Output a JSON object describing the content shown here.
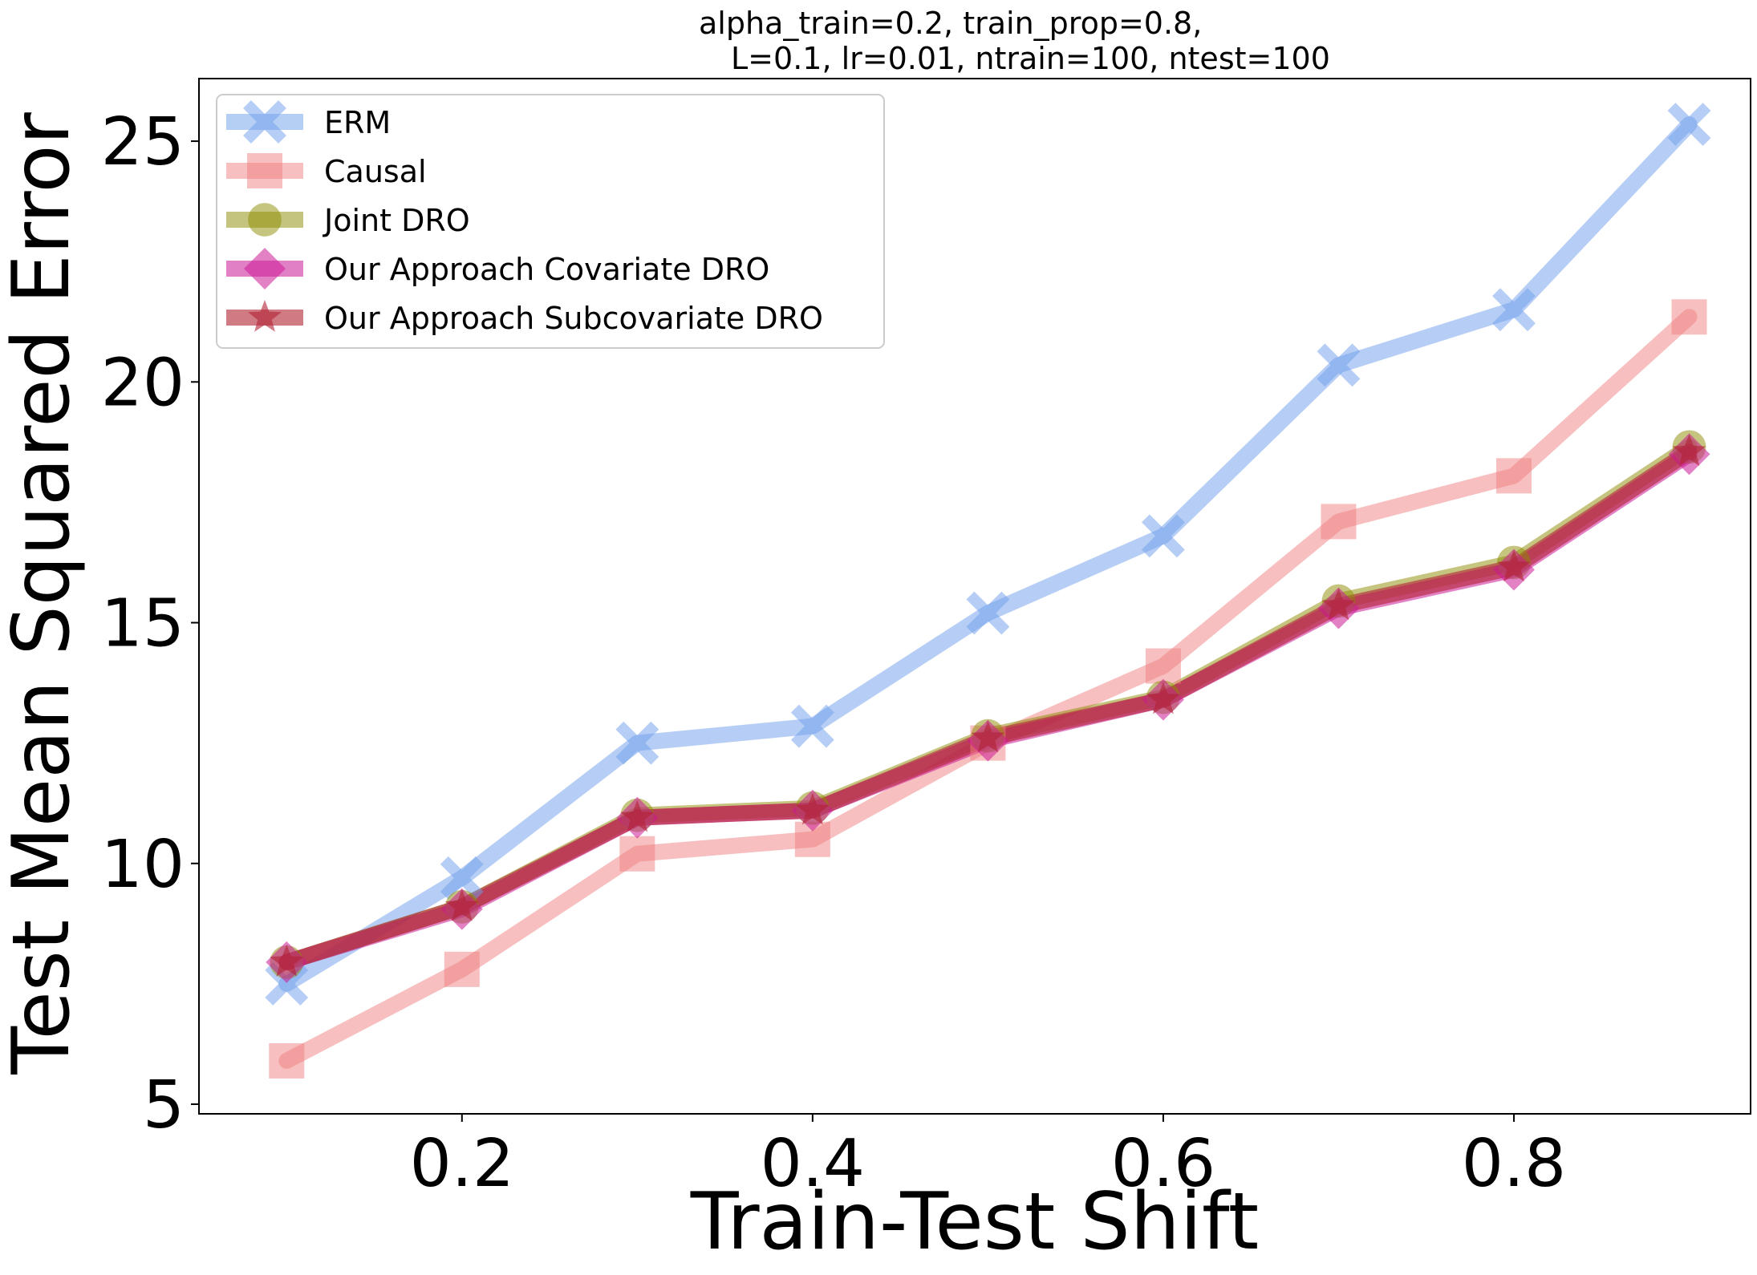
{
  "chart_data": {
    "type": "line",
    "title_line1": "alpha_train=0.2, train_prop=0.8,",
    "title_line2": "L=0.1, lr=0.01, ntrain=100, ntest=100",
    "xlabel": "Train-Test Shift",
    "ylabel": "Test Mean Squared Error",
    "xlim": [
      0.05,
      0.935
    ],
    "ylim": [
      4.8,
      26.3
    ],
    "xticks": [
      0.2,
      0.4,
      0.6,
      0.8
    ],
    "xtick_labels": [
      "0.2",
      "0.4",
      "0.6",
      "0.8"
    ],
    "yticks": [
      5,
      10,
      15,
      20,
      25
    ],
    "ytick_labels": [
      "5",
      "10",
      "15",
      "20",
      "25"
    ],
    "grid": false,
    "legend_position": "top-left",
    "x": [
      0.1,
      0.2,
      0.3,
      0.4,
      0.5,
      0.6,
      0.7,
      0.8,
      0.9
    ],
    "series": [
      {
        "name": "ERM",
        "marker": "x",
        "color": "#6d9eeb",
        "values": [
          7.5,
          9.7,
          12.5,
          12.85,
          15.2,
          16.8,
          20.35,
          21.5,
          25.35
        ]
      },
      {
        "name": "Causal",
        "marker": "square",
        "color": "#f08080",
        "values": [
          5.9,
          7.8,
          10.2,
          10.5,
          12.5,
          14.1,
          17.1,
          18.05,
          21.35
        ]
      },
      {
        "name": "Joint DRO",
        "marker": "circle",
        "color": "#8b8b00",
        "values": [
          7.95,
          9.1,
          11.0,
          11.15,
          12.65,
          13.45,
          15.45,
          16.25,
          18.65
        ]
      },
      {
        "name": "Our Approach Covariate DRO",
        "marker": "diamond",
        "color": "#cc1a96",
        "values": [
          7.95,
          9.05,
          10.95,
          11.1,
          12.55,
          13.4,
          15.3,
          16.1,
          18.5
        ]
      },
      {
        "name": "Our Approach Subcovariate DRO",
        "marker": "star",
        "color": "#b22234",
        "values": [
          7.95,
          9.1,
          10.95,
          11.1,
          12.6,
          13.4,
          15.35,
          16.15,
          18.55
        ]
      }
    ]
  }
}
